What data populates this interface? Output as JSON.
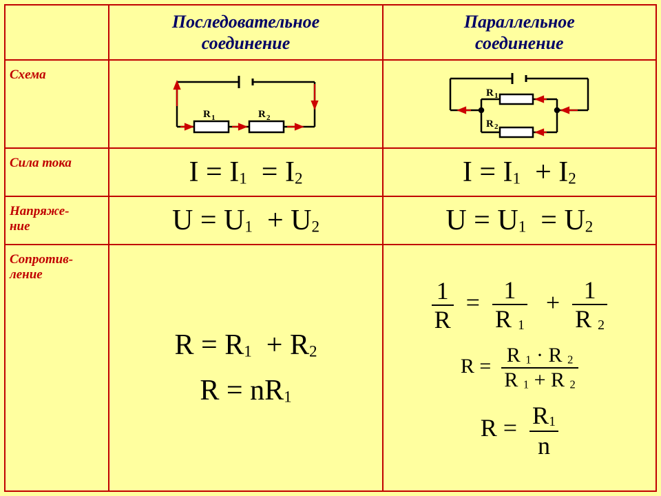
{
  "colors": {
    "slide_bg": "#ffff9f",
    "border": "#c00000",
    "label_text": "#c00000",
    "head_text": "#000066",
    "formula_text": "#000000",
    "circuit_stroke": "#000000",
    "arrow": "#cc0000"
  },
  "layout": {
    "col_label_pct": 16,
    "col_data_pct": 42,
    "row_header_h": 80,
    "row_schema_h": 128,
    "row_current_h": 70,
    "row_voltage_h": 70,
    "header_fontsize": 26,
    "label_fontsize": 19,
    "formula_big_fontsize": 42,
    "formula_mid_fontsize": 36,
    "formula_small_fontsize": 30
  },
  "headers": {
    "col1_line1": "Последовательное",
    "col1_line2": "соединение",
    "col2_line1": "Параллельное",
    "col2_line2": "соединение"
  },
  "rows": {
    "schema": "Схема",
    "current": "Сила тока",
    "voltage": "Напряже-\nние",
    "resistance": "Сопротив-\nление"
  },
  "formulas": {
    "series_current": {
      "lhs": "I",
      "op": "=",
      "t1": "I",
      "s1": "1",
      "mid": "=",
      "t2": "I",
      "s2": "2"
    },
    "parallel_current": {
      "lhs": "I",
      "op": "=",
      "t1": "I",
      "s1": "1",
      "mid": "+",
      "t2": "I",
      "s2": "2"
    },
    "series_voltage": {
      "lhs": "U",
      "op": "=",
      "t1": "U",
      "s1": "1",
      "mid": "+",
      "t2": "U",
      "s2": "2"
    },
    "parallel_voltage": {
      "lhs": "U",
      "op": "=",
      "t1": "U",
      "s1": "1",
      "mid": "=",
      "t2": "U",
      "s2": "2"
    },
    "series_R1": {
      "lhs": "R",
      "op": "=",
      "t1": "R",
      "s1": "1",
      "mid": "+",
      "t2": "R",
      "s2": "2"
    },
    "series_R2": {
      "lhs": "R",
      "op": "=",
      "pre": "n",
      "t1": "R",
      "s1": "1"
    },
    "par_R1_txt": {
      "n1": "1",
      "d1": "R",
      "n2": "1",
      "d2": "R",
      "ds2": "1",
      "n3": "1",
      "d3": "R",
      "ds3": "2"
    },
    "par_R2": {
      "lhs": "R",
      "num_a": "R",
      "num_as": "1",
      "num_dot": "·",
      "num_b": "R",
      "num_bs": "2",
      "den_a": "R",
      "den_as": "1",
      "den_op": "+",
      "den_b": "R",
      "den_bs": "2"
    },
    "par_R3": {
      "lhs": "R",
      "num": "R",
      "nums": "1",
      "den": "n"
    }
  },
  "circuit_labels": {
    "R1": "R",
    "R1s": "1",
    "R2": "R",
    "R2s": "2"
  }
}
